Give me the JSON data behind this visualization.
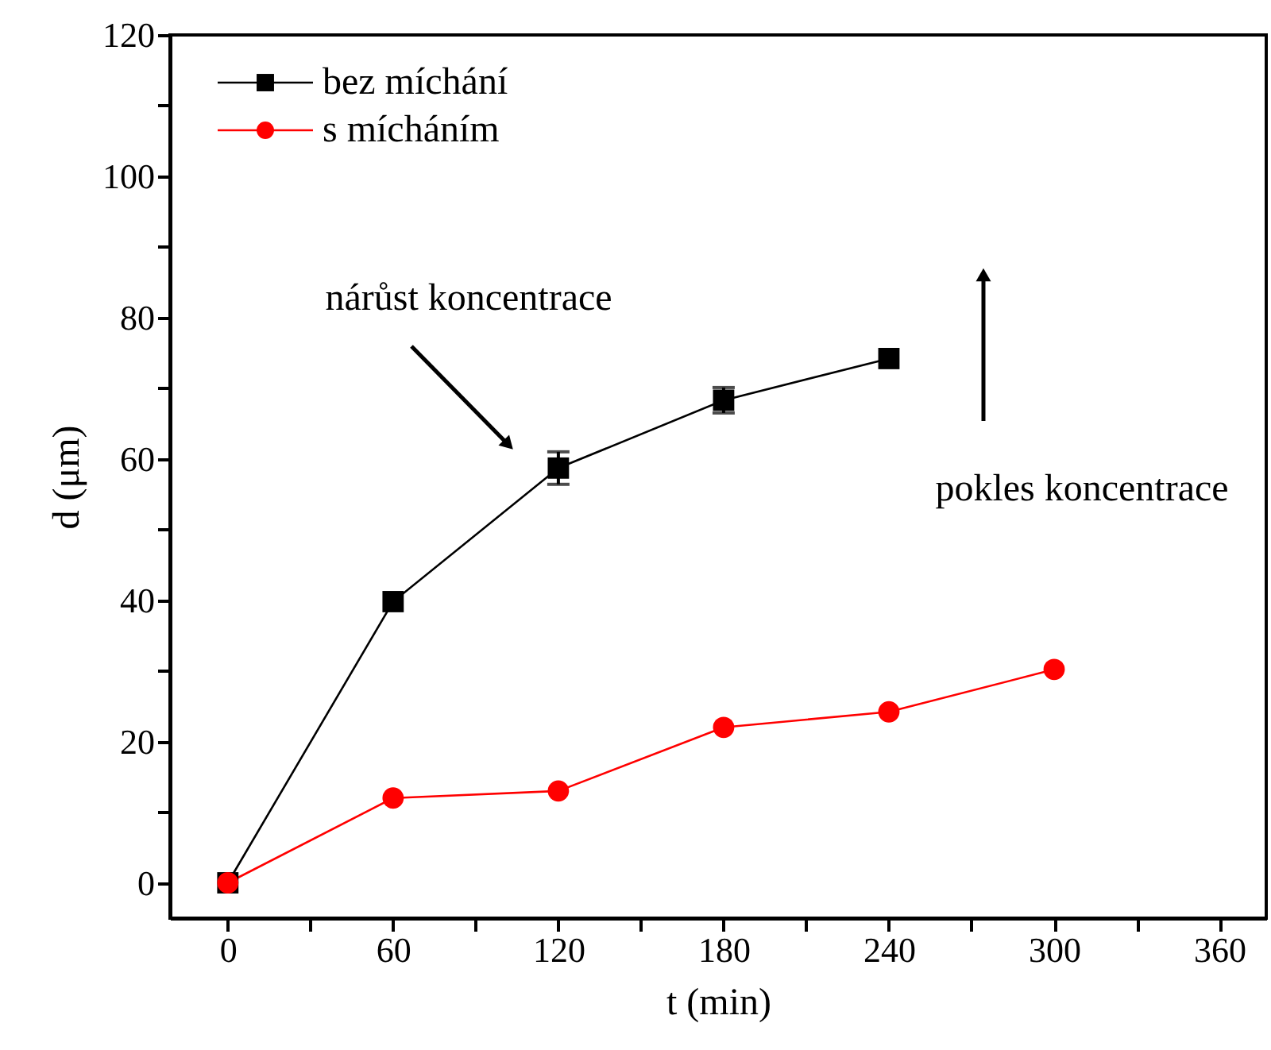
{
  "chart_data": {
    "type": "line",
    "xlabel": "t (min)",
    "ylabel": "d (μm)",
    "x": [
      0,
      60,
      120,
      180,
      240,
      300
    ],
    "series": [
      {
        "name": "bez míchání",
        "color": "#000000",
        "marker": "square",
        "values": [
          0,
          39.8,
          58.7,
          68.3,
          74.2,
          null
        ],
        "errors": [
          null,
          null,
          2.3,
          1.8,
          null,
          null
        ]
      },
      {
        "name": "s mícháním",
        "color": "#ff0000",
        "marker": "circle",
        "values": [
          0,
          12,
          13,
          22,
          24.2,
          30.2
        ]
      }
    ],
    "xlim": [
      -21,
      377
    ],
    "ylim": [
      -5,
      120
    ],
    "xticks": [
      0,
      {
        "value": 30,
        "label": null
      },
      60,
      {
        "value": 90,
        "label": null
      },
      120,
      {
        "value": 150,
        "label": null
      },
      180,
      {
        "value": 210,
        "label": null
      },
      240,
      {
        "value": 270,
        "label": null
      },
      300,
      {
        "value": 330,
        "label": null
      },
      360
    ],
    "yticks": [
      0,
      {
        "value": 10,
        "label": null
      },
      20,
      {
        "value": 30,
        "label": null
      },
      40,
      {
        "value": 50,
        "label": null
      },
      60,
      {
        "value": 70,
        "label": null
      },
      80,
      {
        "value": 90,
        "label": null
      },
      100,
      {
        "value": 110,
        "label": null
      },
      120
    ],
    "annotations": [
      "nárůst koncentrace",
      "pokles koncentrace"
    ],
    "legend": "top left",
    "grid": false
  }
}
